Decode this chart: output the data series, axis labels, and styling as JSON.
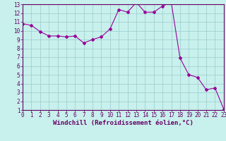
{
  "x": [
    0,
    1,
    2,
    3,
    4,
    5,
    6,
    7,
    8,
    9,
    10,
    11,
    12,
    13,
    14,
    15,
    16,
    17,
    18,
    19,
    20,
    21,
    22,
    23
  ],
  "y": [
    10.8,
    10.6,
    9.9,
    9.4,
    9.4,
    9.3,
    9.4,
    8.6,
    9.0,
    9.3,
    10.2,
    12.4,
    12.1,
    13.2,
    12.1,
    12.1,
    12.8,
    13.2,
    6.9,
    5.0,
    4.7,
    3.3,
    3.5,
    1.1
  ],
  "line_color": "#990099",
  "marker": "D",
  "marker_size": 2,
  "bg_color": "#c8f0ec",
  "grid_color": "#99cccc",
  "xlabel": "Windchill (Refroidissement éolien,°C)",
  "xlim": [
    0,
    23
  ],
  "ylim": [
    1,
    13
  ],
  "yticks": [
    1,
    2,
    3,
    4,
    5,
    6,
    7,
    8,
    9,
    10,
    11,
    12,
    13
  ],
  "xtick_labels": [
    "0",
    "1",
    "2",
    "3",
    "4",
    "5",
    "6",
    "7",
    "8",
    "9",
    "10",
    "11",
    "12",
    "13",
    "14",
    "15",
    "16",
    "17",
    "18",
    "19",
    "20",
    "21",
    "22",
    "23"
  ],
  "label_fontsize": 6.5,
  "tick_fontsize": 5.5,
  "axis_color": "#660066",
  "spine_color": "#660066"
}
